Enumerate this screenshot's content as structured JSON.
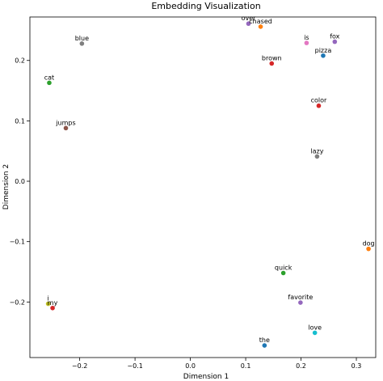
{
  "chart_data": {
    "type": "scatter",
    "title": "Embedding Visualization",
    "xlabel": "Dimension 1",
    "ylabel": "Dimension 2",
    "xlim": [
      -0.29,
      0.335
    ],
    "ylim": [
      -0.292,
      0.272
    ],
    "xticks": [
      -0.2,
      -0.1,
      0.0,
      0.1,
      0.2,
      0.3
    ],
    "xtick_labels": [
      "−0.2",
      "−0.1",
      "0.0",
      "0.1",
      "0.2",
      "0.3"
    ],
    "yticks": [
      -0.2,
      -0.1,
      0.0,
      0.1,
      0.2
    ],
    "ytick_labels": [
      "−0.2",
      "−0.1",
      "0.0",
      "0.1",
      "0.2"
    ],
    "grid": false,
    "points": [
      {
        "label": "over",
        "x": 0.105,
        "y": 0.261,
        "color": "#9467bd"
      },
      {
        "label": "chased",
        "x": 0.127,
        "y": 0.256,
        "color": "#ff7f0e"
      },
      {
        "label": "is",
        "x": 0.21,
        "y": 0.229,
        "color": "#e377c2"
      },
      {
        "label": "fox",
        "x": 0.261,
        "y": 0.231,
        "color": "#9467bd"
      },
      {
        "label": "pizza",
        "x": 0.24,
        "y": 0.208,
        "color": "#1f77b4"
      },
      {
        "label": "brown",
        "x": 0.147,
        "y": 0.195,
        "color": "#d62728"
      },
      {
        "label": "blue",
        "x": -0.196,
        "y": 0.228,
        "color": "#7f7f7f"
      },
      {
        "label": "cat",
        "x": -0.255,
        "y": 0.163,
        "color": "#2ca02c"
      },
      {
        "label": "jumps",
        "x": -0.225,
        "y": 0.088,
        "color": "#8c564b"
      },
      {
        "label": "color",
        "x": 0.232,
        "y": 0.125,
        "color": "#d62728"
      },
      {
        "label": "lazy",
        "x": 0.229,
        "y": 0.041,
        "color": "#7f7f7f"
      },
      {
        "label": "dog",
        "x": 0.322,
        "y": -0.112,
        "color": "#ff7f0e"
      },
      {
        "label": "quick",
        "x": 0.168,
        "y": -0.152,
        "color": "#2ca02c"
      },
      {
        "label": "favorite",
        "x": 0.199,
        "y": -0.201,
        "color": "#9467bd"
      },
      {
        "label": "i",
        "x": -0.257,
        "y": -0.203,
        "color": "#bcbd22"
      },
      {
        "label": "my",
        "x": -0.249,
        "y": -0.21,
        "color": "#d62728"
      },
      {
        "label": "love",
        "x": 0.225,
        "y": -0.251,
        "color": "#17becf"
      },
      {
        "label": "the",
        "x": 0.134,
        "y": -0.272,
        "color": "#1f77b4"
      }
    ]
  }
}
